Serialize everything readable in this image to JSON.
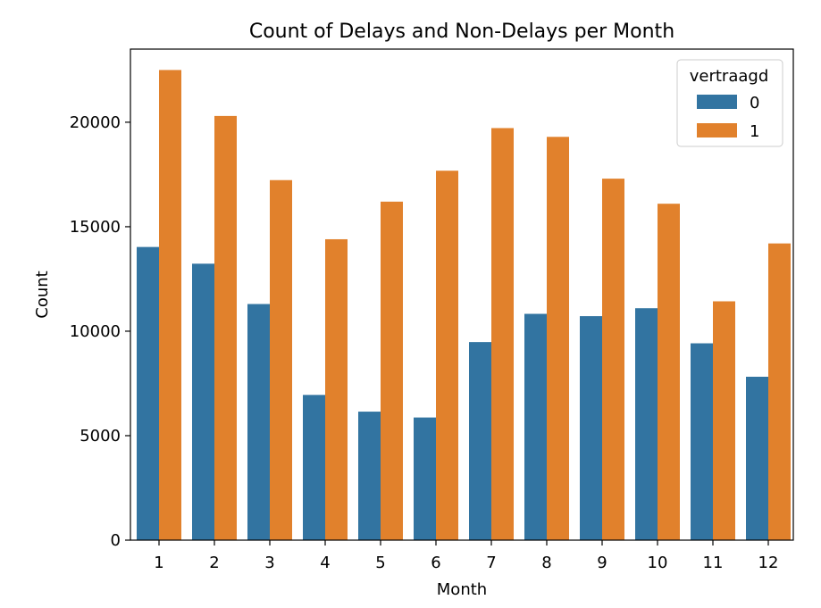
{
  "chart_data": {
    "type": "bar",
    "title": "Count of Delays and Non-Delays per Month",
    "xlabel": "Month",
    "ylabel": "Count",
    "categories": [
      "1",
      "2",
      "3",
      "4",
      "5",
      "6",
      "7",
      "8",
      "9",
      "10",
      "11",
      "12"
    ],
    "ylim": [
      0,
      23500
    ],
    "yticks": [
      0,
      5000,
      10000,
      15000,
      20000
    ],
    "ytick_labels": [
      "0",
      "5000",
      "10000",
      "15000",
      "20000"
    ],
    "grid": false,
    "legend": {
      "title": "vertraagd",
      "placement": "top-right"
    },
    "series": [
      {
        "name": "0",
        "color": "#3274a1",
        "values": [
          14030,
          13230,
          11300,
          6950,
          6150,
          5870,
          9480,
          10830,
          10720,
          11100,
          9420,
          7820
        ]
      },
      {
        "name": "1",
        "color": "#e1812c",
        "values": [
          22500,
          20300,
          17230,
          14400,
          16200,
          17680,
          19720,
          19300,
          17300,
          16100,
          11430,
          14200
        ]
      }
    ]
  }
}
